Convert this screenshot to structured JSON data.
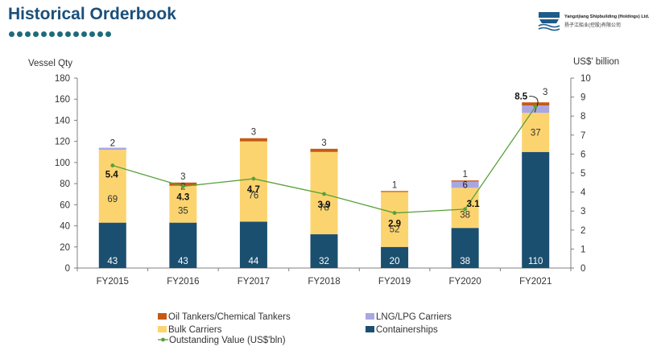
{
  "page": {
    "title": "Historical Orderbook",
    "logo": {
      "name_en": "Yangzijiang Shipbuilding (Holdings) Ltd.",
      "name_cn": "扬子江船业(控股)有限公司"
    }
  },
  "colors": {
    "title": "#1b4f7a",
    "containerships": "#1b4f6f",
    "bulk": "#fcd46f",
    "lng": "#a9a7e2",
    "oil": "#c65a14",
    "line": "#56a13a",
    "dots": "#1e6b7a"
  },
  "chart_data": {
    "type": "bar",
    "stacked": true,
    "categories": [
      "FY2015",
      "FY2016",
      "FY2017",
      "FY2018",
      "FY2019",
      "FY2020",
      "FY2021"
    ],
    "ylabel": "Vessel Qty",
    "y2label": "US$' billion",
    "ylim": [
      0,
      180
    ],
    "yticks": [
      0,
      20,
      40,
      60,
      80,
      100,
      120,
      140,
      160,
      180
    ],
    "y2lim": [
      0,
      10
    ],
    "y2ticks": [
      0,
      1,
      2,
      3,
      4,
      5,
      6,
      7,
      8,
      9,
      10
    ],
    "series": [
      {
        "name": "Containerships",
        "key": "containerships",
        "values": [
          43,
          43,
          44,
          32,
          20,
          38,
          110
        ],
        "labels": [
          "43",
          "43",
          "44",
          "32",
          "20",
          "38",
          "110"
        ]
      },
      {
        "name": "Bulk Carriers",
        "key": "bulk",
        "values": [
          69,
          35,
          76,
          78,
          52,
          38,
          37
        ],
        "labels": [
          "69",
          "35",
          "76",
          "78",
          "52",
          "38",
          "37"
        ]
      },
      {
        "name": "LNG/LPG Carriers",
        "key": "lng",
        "values": [
          2,
          0,
          0,
          0,
          0,
          6,
          7
        ],
        "labels": [
          "2",
          "",
          "",
          "",
          "",
          "6",
          "7"
        ]
      },
      {
        "name": "Oil Tankers/Chemical Tankers",
        "key": "oil",
        "values": [
          0,
          3,
          3,
          3,
          1,
          1,
          3
        ],
        "labels": [
          "",
          "3",
          "3",
          "3",
          "1",
          "1",
          "3"
        ]
      }
    ],
    "extra_labels": [
      "",
      "2",
      "",
      "",
      "",
      "",
      ""
    ],
    "line": {
      "name": "Outstanding Value (US$'bln)",
      "axis": "right",
      "values": [
        5.4,
        4.3,
        4.7,
        3.9,
        2.9,
        3.1,
        8.5
      ],
      "labels": [
        "5.4",
        "4.3",
        "4.7",
        "3.9",
        "2.9",
        "3.1",
        "8.5"
      ]
    },
    "legend": [
      "Oil Tankers/Chemical Tankers",
      "LNG/LPG Carriers",
      "Bulk Carriers",
      "Containerships",
      "Outstanding Value (US$'bln)"
    ]
  }
}
